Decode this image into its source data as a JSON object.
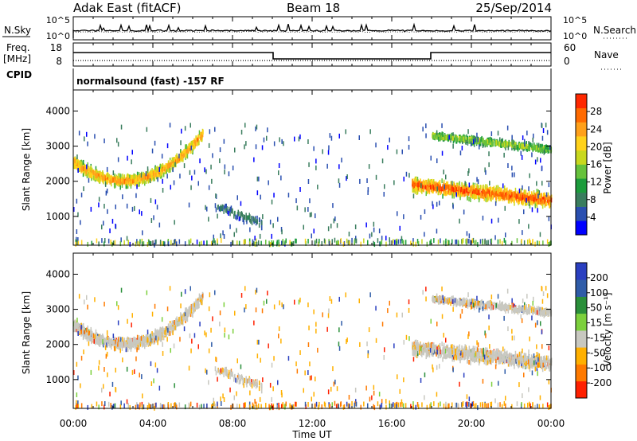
{
  "header": {
    "station": "Adak East (fitACF)",
    "beam": "Beam 18",
    "date": "25/Sep/2014"
  },
  "nsky_panel": {
    "label_left": "N.Sky",
    "label_right": "N.Search",
    "ticks_left": [
      "10^5",
      "10^0"
    ],
    "ticks_right": [
      "10^5",
      "10^0"
    ]
  },
  "freq_panel": {
    "label_left_top": "Freq.",
    "label_left_bottom": "[MHz]",
    "label_right": "Nave",
    "ticks_left": [
      "18",
      "8"
    ],
    "ticks_right": [
      "60",
      "0"
    ],
    "cpid_label": "CPID",
    "cpid_text": "normalsound (fast) -157 RF"
  },
  "chart_data": [
    {
      "type": "heatmap",
      "name": "power",
      "xlabel": "Time UT",
      "ylabel": "Slant Range [km]",
      "x_ticks": [
        "00:00",
        "04:00",
        "08:00",
        "12:00",
        "16:00",
        "20:00",
        "00:00"
      ],
      "x_range_hours": [
        0,
        24
      ],
      "y_ticks": [
        1000,
        2000,
        3000,
        4000
      ],
      "ylim": [
        180,
        4600
      ],
      "colorbar": {
        "label": "Power [dB]",
        "ticks": [
          "4",
          "8",
          "12",
          "16",
          "20",
          "24",
          "28"
        ],
        "colors": [
          "#0000ff",
          "#2a4fb0",
          "#3a7d5e",
          "#1c9c3c",
          "#66c23c",
          "#c8d81e",
          "#ffd21a",
          "#ffa01a",
          "#ff6a00",
          "#ff2800"
        ]
      },
      "features": [
        {
          "label": "echo band",
          "t_start": 0.0,
          "t_end": 6.5,
          "range_start": 2550,
          "range_mid": 2050,
          "range_end": 3350,
          "peak_power": 24
        },
        {
          "label": "echo band",
          "t_start": 17.0,
          "t_end": 24.0,
          "range_start": 1900,
          "range_end": 1450,
          "peak_power": 28
        },
        {
          "label": "echo band",
          "t_start": 18.0,
          "t_end": 24.0,
          "range_start": 3300,
          "range_end": 2900,
          "peak_power": 16
        },
        {
          "label": "scatter patch",
          "t_start": 7.0,
          "t_end": 9.5,
          "range_start": 1300,
          "range_end": 800,
          "peak_power": 8
        }
      ]
    },
    {
      "type": "heatmap",
      "name": "velocity",
      "xlabel": "Time UT",
      "ylabel": "Slant Range [km]",
      "x_ticks": [
        "00:00",
        "04:00",
        "08:00",
        "12:00",
        "16:00",
        "20:00",
        "00:00"
      ],
      "x_range_hours": [
        0,
        24
      ],
      "y_ticks": [
        1000,
        2000,
        3000,
        4000
      ],
      "ylim": [
        180,
        4600
      ],
      "colorbar": {
        "label": "Velocity [m s⁻¹]",
        "ticks": [
          "200",
          "100",
          "50",
          "15",
          "-15",
          "-50",
          "-100",
          "-200"
        ],
        "colors": [
          "#2a3fc0",
          "#2f5ca8",
          "#2a8f3a",
          "#7cd03c",
          "#c8c8c0",
          "#ffb000",
          "#ff7a00",
          "#ff2000"
        ]
      },
      "ground_scatter_color": "#c8c8c0"
    }
  ]
}
